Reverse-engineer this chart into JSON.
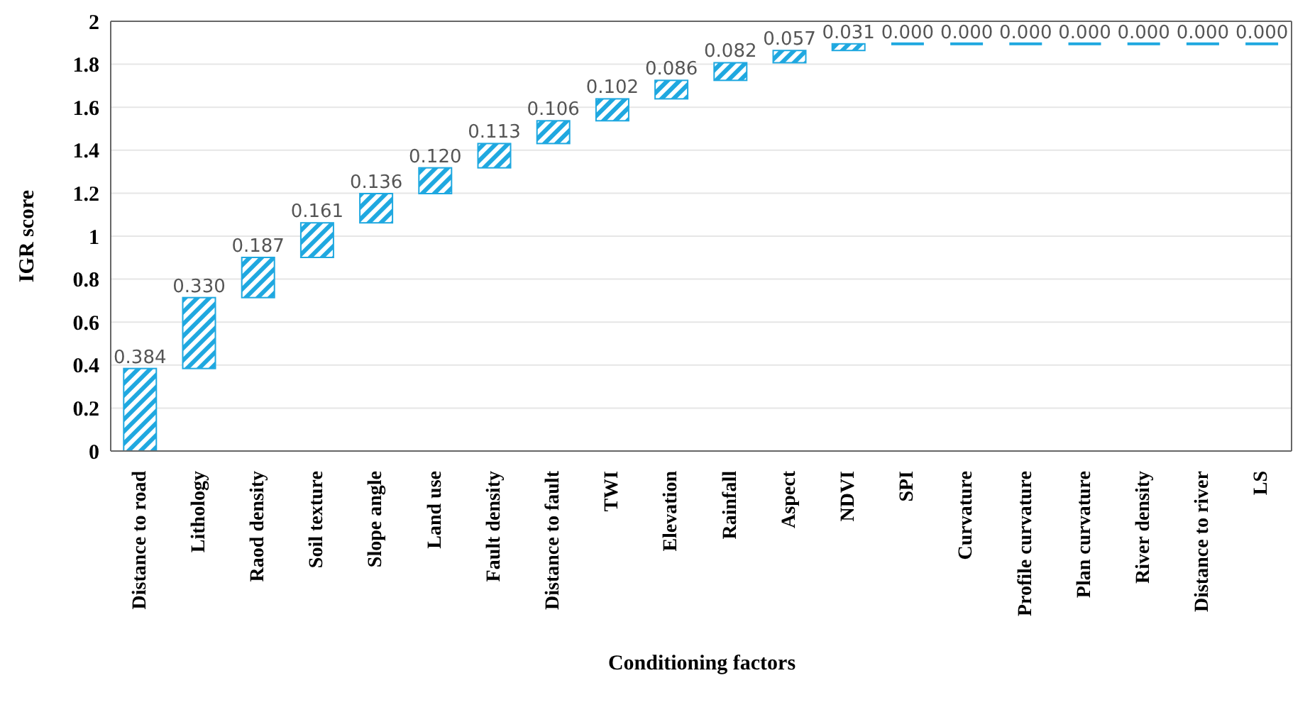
{
  "chart_data": {
    "type": "bar",
    "xlabel": "Conditioning factors",
    "ylabel": "IGR score",
    "categories": [
      "Distance to road",
      "Lithology",
      "Raod density",
      "Soil texture",
      "Slope angle",
      "Land use",
      "Fault density",
      "Distance to fault",
      "TWI",
      "Elevation",
      "Rainfall",
      "Aspect",
      "NDVI",
      "SPI",
      "Curvature",
      "Profile curvature",
      "Plan curvature",
      "River density",
      "Distance to river",
      "LS"
    ],
    "values": [
      0.384,
      0.33,
      0.187,
      0.161,
      0.136,
      0.12,
      0.113,
      0.106,
      0.102,
      0.086,
      0.082,
      0.057,
      0.031,
      0,
      0,
      0,
      0,
      0,
      0,
      0
    ],
    "base": [
      0,
      0.384,
      0.714,
      0.901,
      1.062,
      1.198,
      1.318,
      1.431,
      1.537,
      1.639,
      1.725,
      1.807,
      1.864,
      1.895,
      1.895,
      1.895,
      1.895,
      1.895,
      1.895,
      1.895
    ],
    "value_labels": [
      "0.384",
      "0.330",
      "0.187",
      "0.161",
      "0.136",
      "0.120",
      "0.113",
      "0.106",
      "0.102",
      "0.086",
      "0.082",
      "0.057",
      "0.031",
      "0.000",
      "0.000",
      "0.000",
      "0.000",
      "0.000",
      "0.000",
      "0.000"
    ],
    "color": "#1fa8e0",
    "ylim": [
      0,
      2
    ],
    "yticks": [
      0,
      0.2,
      0.4,
      0.6,
      0.8,
      1,
      1.2,
      1.4,
      1.6,
      1.8,
      2
    ],
    "grid": "y"
  }
}
